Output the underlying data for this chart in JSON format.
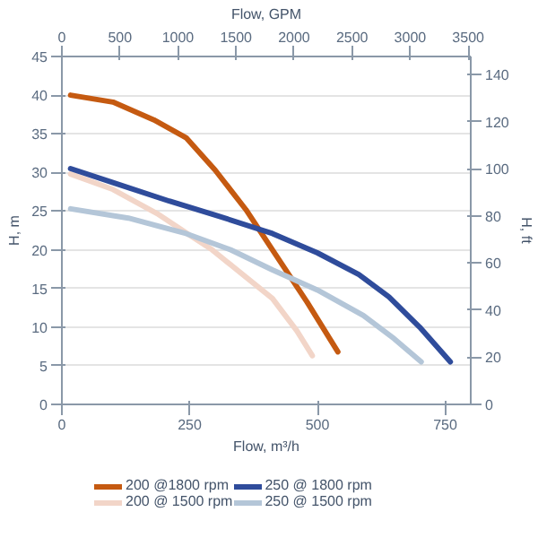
{
  "chart_data": {
    "type": "line",
    "xlabel": "Flow, m³/h",
    "ylabel": "H, m",
    "y2label": "H, ft",
    "x2label": "Flow, GPM",
    "xlim": [
      0,
      800
    ],
    "xticks": [
      0,
      250,
      500,
      750
    ],
    "ylim": [
      0,
      45
    ],
    "yticks": [
      0,
      5,
      10,
      15,
      20,
      25,
      30,
      35,
      40,
      45
    ],
    "x2lim": [
      0,
      3522
    ],
    "x2ticks": [
      0,
      500,
      1000,
      1500,
      2000,
      2500,
      3000,
      3500
    ],
    "y2lim": [
      0,
      147.6
    ],
    "y2ticks": [
      0,
      20,
      40,
      60,
      80,
      100,
      120,
      140
    ],
    "grid": "y",
    "legend": "bottom",
    "series": [
      {
        "name": "200 @1800 rpm",
        "color": "#c55a11",
        "x": [
          17,
          100,
          180,
          243,
          300,
          360,
          412,
          480,
          540
        ],
        "values": [
          40,
          39.1,
          36.8,
          34.5,
          30.3,
          25.2,
          20,
          13.2,
          6.8
        ]
      },
      {
        "name": "200 @ 1500 rpm",
        "color": "#f2d5c8",
        "x": [
          17,
          100,
          186,
          250,
          294,
          350,
          412,
          460,
          490
        ],
        "values": [
          29.8,
          27.8,
          24.7,
          21.9,
          20,
          17,
          13.7,
          9.5,
          6.3
        ]
      },
      {
        "name": "250 @ 1800 rpm",
        "color": "#2f4c9b",
        "x": [
          17,
          100,
          210,
          300,
          412,
          500,
          581,
          640,
          700,
          760
        ],
        "values": [
          30.5,
          28.7,
          26.3,
          24.5,
          22.1,
          19.6,
          16.8,
          13.9,
          10,
          5.5
        ]
      },
      {
        "name": "250 @ 1500 rpm",
        "color": "#b4c6d8",
        "x": [
          17,
          130,
          243,
          330,
          412,
          500,
          590,
          650,
          703
        ],
        "values": [
          25.3,
          24.1,
          22.1,
          20,
          17.4,
          14.8,
          11.5,
          8.5,
          5.5
        ]
      }
    ]
  }
}
